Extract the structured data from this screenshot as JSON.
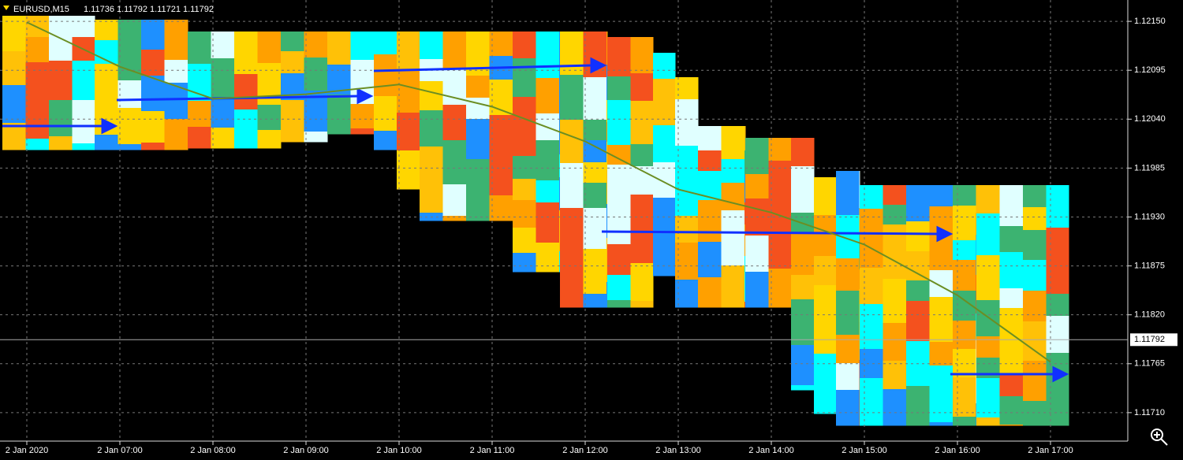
{
  "chart_data": {
    "type": "line",
    "title": "EURUSD,M15",
    "subtitle": "1.11736 1.11792 1.11721 1.11792",
    "categories": [
      "2 Jan 2020",
      "2 Jan 07:00",
      "2 Jan 08:00",
      "2 Jan 09:00",
      "2 Jan 10:00",
      "2 Jan 11:00",
      "2 Jan 12:00",
      "2 Jan 13:00",
      "2 Jan 14:00",
      "2 Jan 15:00",
      "2 Jan 16:00",
      "2 Jan 17:00"
    ],
    "series": [
      {
        "color": "#6b8e23",
        "values": [
          1.12149,
          1.12099,
          1.12063,
          1.12068,
          1.12079,
          1.12054,
          1.12015,
          1.11961,
          1.11935,
          1.11899,
          1.11842,
          1.11767
        ]
      }
    ],
    "ylim": [
      1.11678,
      1.12174
    ],
    "yticks": [
      {
        "value": 1.1215,
        "label": "1.12150"
      },
      {
        "value": 1.12095,
        "label": "1.12095"
      },
      {
        "value": 1.1204,
        "label": "1.12040"
      },
      {
        "value": 1.11985,
        "label": "1.11985"
      },
      {
        "value": 1.1193,
        "label": "1.11930"
      },
      {
        "value": 1.11875,
        "label": "1.11875"
      },
      {
        "value": 1.1182,
        "label": "1.11820"
      },
      {
        "value": 1.11765,
        "label": "1.11765"
      },
      {
        "value": 1.1171,
        "label": "1.11710"
      }
    ],
    "current_price": {
      "value": 1.11792,
      "label": "1.11792"
    },
    "grid": true
  }
}
